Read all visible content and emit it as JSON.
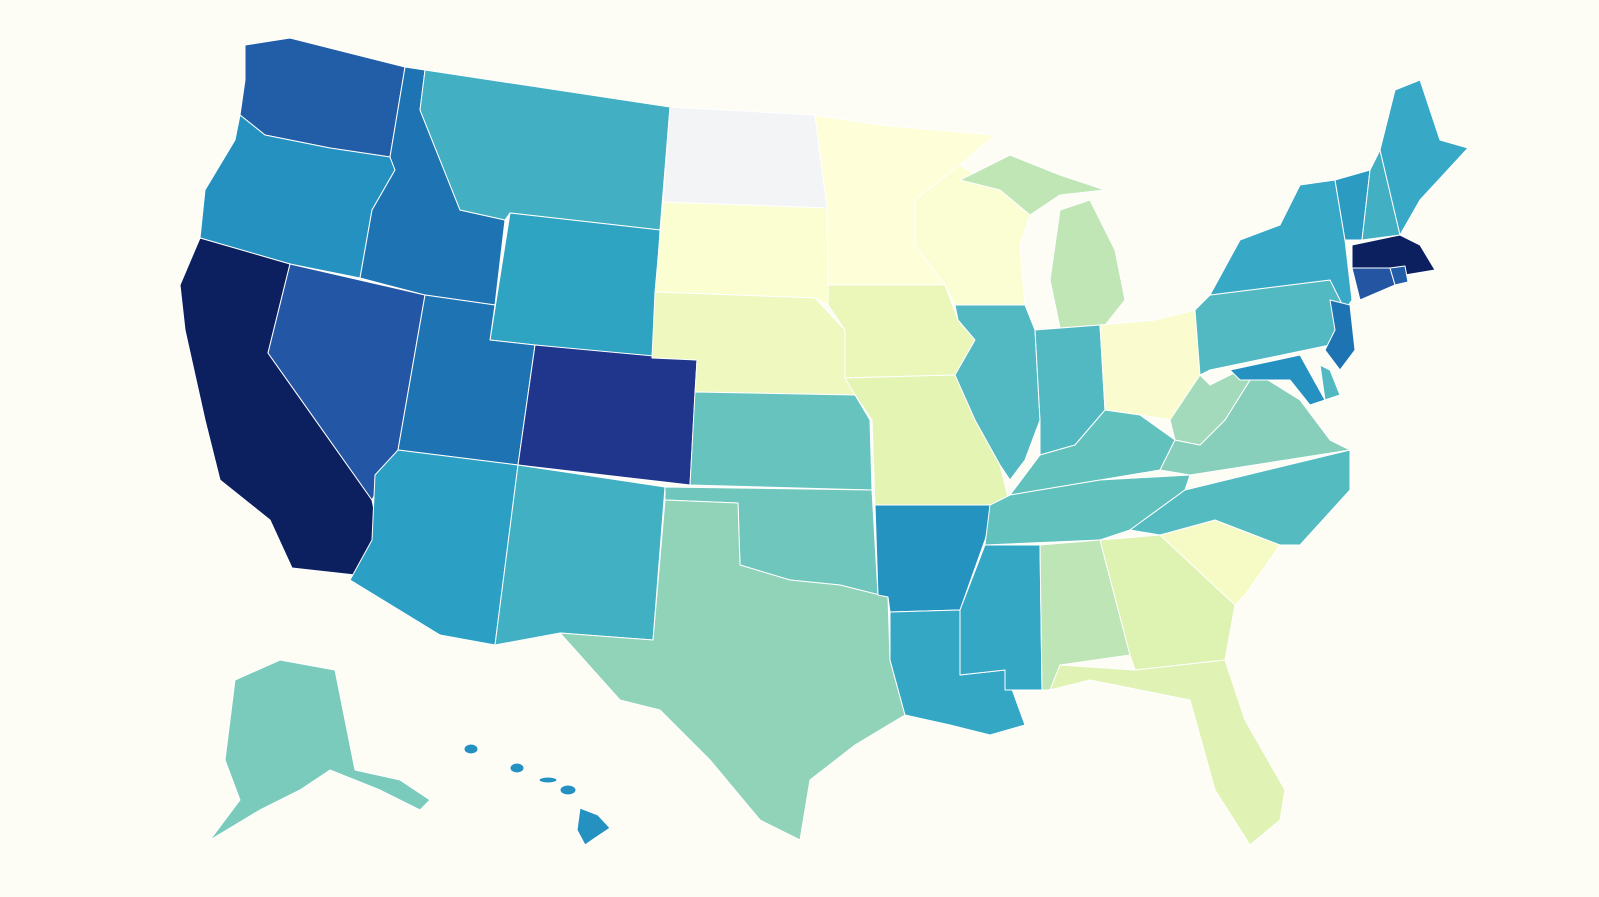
{
  "map": {
    "type": "choropleth",
    "region": "United States",
    "background": "#fdfcf5",
    "border_color": "#ffffff",
    "color_scale": "yellow-green-blue",
    "states": {
      "WA": "#225ea8",
      "OR": "#2591c1",
      "CA": "#0c2060",
      "NV": "#2356a4",
      "ID": "#1e74b3",
      "MT": "#42b0c2",
      "WY": "#2fa3c2",
      "UT": "#1e74b3",
      "CO": "#20368c",
      "AZ": "#2c9fc4",
      "NM": "#40b0c2",
      "ND": "#f3f4f6",
      "SD": "#fbfed0",
      "NE": "#eef8bf",
      "KS": "#67c3bd",
      "OK": "#6ec6bc",
      "TX": "#90d3b9",
      "MN": "#fefed8",
      "IA": "#ebf7b9",
      "MO": "#e3f4b3",
      "AR": "#2593bf",
      "LA": "#34a7c4",
      "WI": "#fbfdd3",
      "IL": "#52b9c2",
      "MI": "#c0e6b6",
      "IN": "#52b9c2",
      "OH": "#fafcd0",
      "KY": "#60c1bd",
      "TN": "#60c1bd",
      "MS": "#34a7c4",
      "AL": "#bde5b5",
      "GA": "#def2b2",
      "FL": "#e0f3b4",
      "SC": "#f6fbc6",
      "NC": "#54bbc1",
      "VA": "#87cfbb",
      "WV": "#a2dabb",
      "PA": "#52b9c2",
      "NY": "#37a8c6",
      "VT": "#2b9bc2",
      "NH": "#42b0c2",
      "ME": "#37a8c6",
      "MA": "#0c2060",
      "CT": "#2355a3",
      "RI": "#225ea8",
      "NJ": "#1e74b3",
      "DE": "#52b9c2",
      "MD": "#2591c1",
      "AK": "#7acbbc",
      "HI": "#2591c1"
    }
  }
}
